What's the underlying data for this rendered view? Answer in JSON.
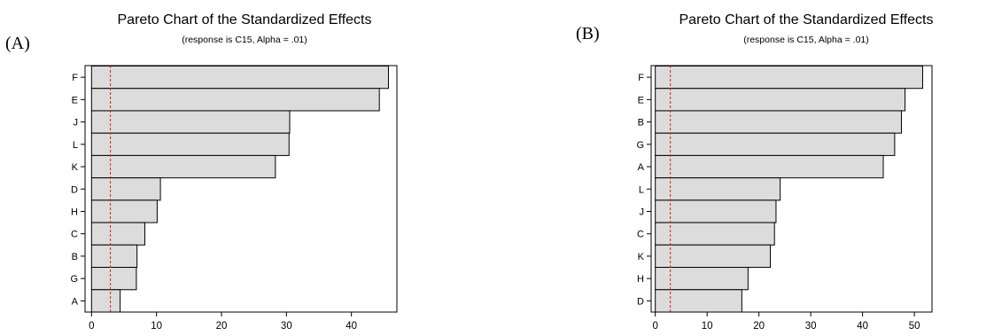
{
  "panels": [
    {
      "id": "A",
      "label": "(A)"
    },
    {
      "id": "B",
      "label": "(B)"
    }
  ],
  "chart_data": [
    {
      "type": "bar",
      "orientation": "horizontal",
      "title": "Pareto Chart of the Standardized Effects",
      "subtitle": "(response is C15, Alpha = .01)",
      "categories": [
        "F",
        "E",
        "J",
        "L",
        "K",
        "D",
        "H",
        "C",
        "B",
        "G",
        "A"
      ],
      "values": [
        45.7,
        44.3,
        30.5,
        30.4,
        28.3,
        10.6,
        10.1,
        8.2,
        7.0,
        6.9,
        4.4
      ],
      "reference_line": 2.9,
      "reference_line_color": "#e41a1c",
      "bar_color": "#dcdcdc",
      "xlim": [
        -1,
        47
      ],
      "xticks": [
        0,
        10,
        20,
        30,
        40
      ]
    },
    {
      "type": "bar",
      "orientation": "horizontal",
      "title": "Pareto Chart of the Standardized Effects",
      "subtitle": "(response is C15, Alpha = .01)",
      "categories": [
        "F",
        "E",
        "B",
        "G",
        "A",
        "L",
        "J",
        "C",
        "K",
        "H",
        "D"
      ],
      "values": [
        51.6,
        48.2,
        47.5,
        46.2,
        44.0,
        24.1,
        23.3,
        23.0,
        22.2,
        17.9,
        16.7
      ],
      "reference_line": 2.9,
      "reference_line_color": "#e41a1c",
      "bar_color": "#dcdcdc",
      "xlim": [
        -0.8,
        53.4
      ],
      "xticks": [
        0,
        10,
        20,
        30,
        40,
        50
      ]
    }
  ]
}
